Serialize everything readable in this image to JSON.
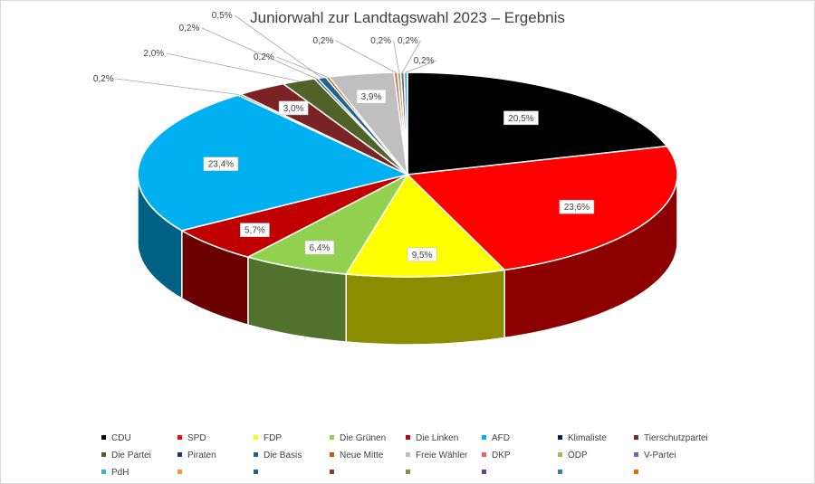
{
  "chart_data": {
    "type": "pie",
    "title": "Juniorwahl zur Landtagswahl 2023 – Ergebnis",
    "value_format": "percent",
    "slices": [
      {
        "name": "CDU",
        "value": 20.5,
        "label": "20,5%",
        "color": "#000000"
      },
      {
        "name": "SPD",
        "value": 23.6,
        "label": "23,6%",
        "color": "#ff0000"
      },
      {
        "name": "FDP",
        "value": 9.5,
        "label": "9,5%",
        "color": "#ffff00"
      },
      {
        "name": "Die Grünen",
        "value": 6.4,
        "label": "6,4%",
        "color": "#92d050"
      },
      {
        "name": "Die Linken",
        "value": 5.7,
        "label": "5,7%",
        "color": "#c00000"
      },
      {
        "name": "AFD",
        "value": 23.4,
        "label": "23,4%",
        "color": "#00b0f0"
      },
      {
        "name": "Klimaliste",
        "value": 0.2,
        "label": "0,2%",
        "color": "#002060"
      },
      {
        "name": "Tierschutzpartei",
        "value": 3.0,
        "label": "3,0%",
        "color": "#7b2224"
      },
      {
        "name": "Die Partei",
        "value": 2.0,
        "label": "2,0%",
        "color": "#4f6228"
      },
      {
        "name": "Piraten",
        "value": 0.2,
        "label": "0,2%",
        "color": "#1f3864"
      },
      {
        "name": "Die Basis",
        "value": 0.5,
        "label": "0,5%",
        "color": "#1f6391"
      },
      {
        "name": "Neue Mitte",
        "value": 0.2,
        "label": "0,2%",
        "color": "#c55a11"
      },
      {
        "name": "Freie Wähler",
        "value": 3.9,
        "label": "3,9%",
        "color": "#bfbfbf"
      },
      {
        "name": "DKP",
        "value": 0.2,
        "label": "0,2%",
        "color": "#e06666"
      },
      {
        "name": "ÖDP",
        "value": 0.2,
        "label": "0,2%",
        "color": "#9bbb59"
      },
      {
        "name": "V-Partei",
        "value": 0.2,
        "label": "0,2%",
        "color": "#8064a2"
      },
      {
        "name": "PdH",
        "value": 0.2,
        "label": "0,2%",
        "color": "#4bacc6"
      }
    ],
    "extra_legend_swatches": [
      "#f79646",
      "#1f6391",
      "#943634",
      "#77933c",
      "#604a7b",
      "#31859c",
      "#e46c0a"
    ],
    "legend_position": "bottom"
  }
}
